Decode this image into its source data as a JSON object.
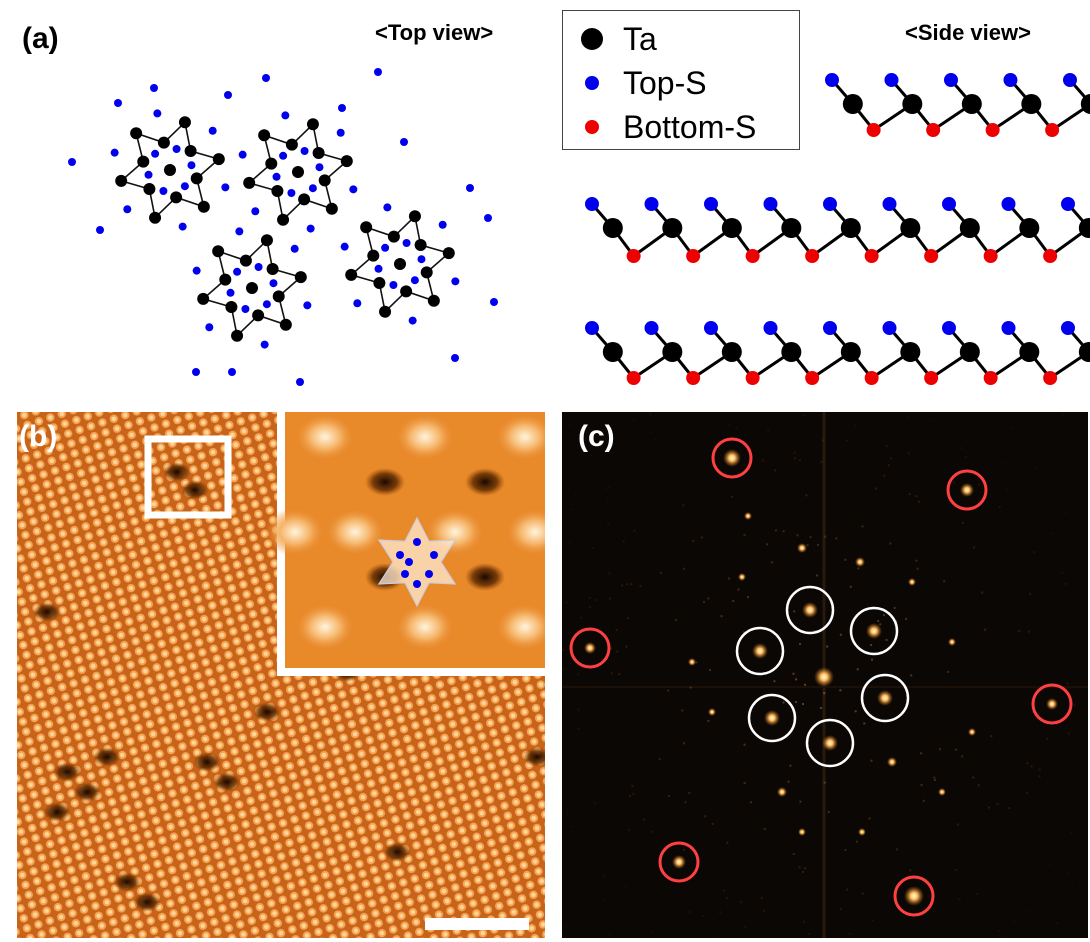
{
  "panel_a": {
    "label": "(a)",
    "top_view_title": "<Top view>",
    "side_view_title": "<Side view>",
    "legend": [
      {
        "text": "Ta",
        "color": "#000000"
      },
      {
        "text": "Top-S",
        "color": "#0000ee"
      },
      {
        "text": "Bottom-S",
        "color": "#ee0000"
      }
    ]
  },
  "panel_b": {
    "label": "(b)"
  },
  "panel_c": {
    "label": "(c)"
  },
  "colors": {
    "ta": "#000000",
    "top_s": "#0000ee",
    "bottom_s": "#ee0000",
    "stm": "#e8892a",
    "fft_bg": "#0b0704",
    "red_circle": "#ff4040",
    "white_circle": "#ffffff"
  }
}
